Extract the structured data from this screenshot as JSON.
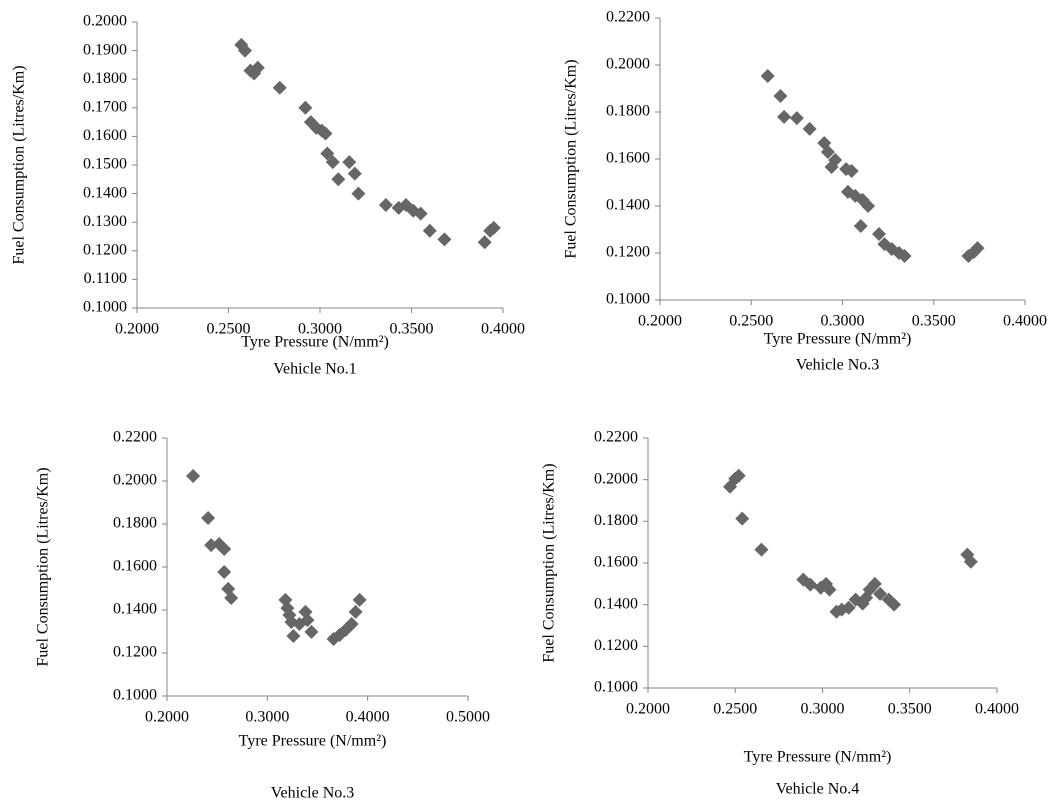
{
  "chart_data": [
    {
      "type": "scatter",
      "title": "Vehicle No.1",
      "xlabel": "Tyre Pressure (N/mm²)",
      "ylabel": "Fuel Consumption (Litres/Km)",
      "color": "#666666",
      "marker": "diamond",
      "x": [
        0.257,
        0.259,
        0.262,
        0.266,
        0.264,
        0.278,
        0.292,
        0.295,
        0.298,
        0.301,
        0.303,
        0.304,
        0.307,
        0.31,
        0.316,
        0.319,
        0.321,
        0.336,
        0.343,
        0.347,
        0.351,
        0.355,
        0.36,
        0.368,
        0.39,
        0.393,
        0.395
      ],
      "values": [
        0.192,
        0.19,
        0.183,
        0.184,
        0.182,
        0.177,
        0.17,
        0.165,
        0.163,
        0.162,
        0.161,
        0.154,
        0.151,
        0.145,
        0.151,
        0.147,
        0.14,
        0.136,
        0.135,
        0.136,
        0.134,
        0.133,
        0.127,
        0.124,
        0.123,
        0.127,
        0.128
      ],
      "xlim": [
        0.2,
        0.4
      ],
      "ylim": [
        0.1,
        0.2
      ],
      "xticks": [
        {
          "value": 0.2,
          "label": "0.2000"
        },
        {
          "value": 0.25,
          "label": "0.2500"
        },
        {
          "value": 0.3,
          "label": "0.3000"
        },
        {
          "value": 0.35,
          "label": "0.3500"
        },
        {
          "value": 0.4,
          "label": "0.4000"
        }
      ],
      "yticks": [
        {
          "value": 0.1,
          "label": "0.1000"
        },
        {
          "value": 0.11,
          "label": "0.1100"
        },
        {
          "value": 0.12,
          "label": "0.1200"
        },
        {
          "value": 0.13,
          "label": "0.1300"
        },
        {
          "value": 0.14,
          "label": "0.1400"
        },
        {
          "value": 0.15,
          "label": "0.1500"
        },
        {
          "value": 0.16,
          "label": "0.1600"
        },
        {
          "value": 0.17,
          "label": "0.1700"
        },
        {
          "value": 0.18,
          "label": "0.1800"
        },
        {
          "value": 0.19,
          "label": "0.1900"
        },
        {
          "value": 0.2,
          "label": "0.2000"
        }
      ]
    },
    {
      "type": "scatter",
      "title": "Vehicle No.3",
      "xlabel": "Tyre Pressure (N/mm²)",
      "ylabel": "Fuel Consumption (Litres/Km)",
      "color": "#666666",
      "marker": "diamond",
      "x": [
        0.259,
        0.266,
        0.268,
        0.275,
        0.282,
        0.29,
        0.292,
        0.294,
        0.296,
        0.302,
        0.305,
        0.303,
        0.307,
        0.311,
        0.314,
        0.31,
        0.32,
        0.323,
        0.327,
        0.331,
        0.334,
        0.369,
        0.372,
        0.374
      ],
      "values": [
        0.1953,
        0.1868,
        0.1779,
        0.1774,
        0.1728,
        0.1668,
        0.163,
        0.1566,
        0.1596,
        0.1557,
        0.1549,
        0.146,
        0.1443,
        0.1426,
        0.14,
        0.1315,
        0.1281,
        0.1238,
        0.1217,
        0.12,
        0.1187,
        0.1187,
        0.1204,
        0.1221
      ],
      "xlim": [
        0.2,
        0.4
      ],
      "ylim": [
        0.1,
        0.22
      ],
      "xticks": [
        {
          "value": 0.2,
          "label": "0.2000"
        },
        {
          "value": 0.25,
          "label": "0.2500"
        },
        {
          "value": 0.3,
          "label": "0.3000"
        },
        {
          "value": 0.35,
          "label": "0.3500"
        },
        {
          "value": 0.4,
          "label": "0.4000"
        }
      ],
      "yticks": [
        {
          "value": 0.1,
          "label": "0.1000"
        },
        {
          "value": 0.12,
          "label": "0.1200"
        },
        {
          "value": 0.14,
          "label": "0.1400"
        },
        {
          "value": 0.16,
          "label": "0.1600"
        },
        {
          "value": 0.18,
          "label": "0.1800"
        },
        {
          "value": 0.2,
          "label": "0.2000"
        },
        {
          "value": 0.22,
          "label": "0.2200"
        }
      ]
    },
    {
      "type": "scatter",
      "title": "Vehicle No.3",
      "xlabel": "Tyre Pressure (N/mm²)",
      "ylabel": "Fuel Consumption (Litres/Km)",
      "color": "#666666",
      "marker": "diamond",
      "x": [
        0.226,
        0.241,
        0.244,
        0.252,
        0.257,
        0.257,
        0.261,
        0.264,
        0.318,
        0.32,
        0.322,
        0.324,
        0.326,
        0.332,
        0.338,
        0.34,
        0.344,
        0.366,
        0.372,
        0.378,
        0.384,
        0.388,
        0.392
      ],
      "values": [
        0.2023,
        0.1828,
        0.1702,
        0.1707,
        0.1684,
        0.1577,
        0.1498,
        0.1456,
        0.1447,
        0.1409,
        0.1377,
        0.1344,
        0.1279,
        0.1335,
        0.1391,
        0.1353,
        0.1298,
        0.1265,
        0.1284,
        0.1307,
        0.1335,
        0.1391,
        0.1447
      ],
      "xlim": [
        0.2,
        0.5
      ],
      "ylim": [
        0.1,
        0.22
      ],
      "xticks": [
        {
          "value": 0.2,
          "label": "0.2000"
        },
        {
          "value": 0.3,
          "label": "0.3000"
        },
        {
          "value": 0.4,
          "label": "0.4000"
        },
        {
          "value": 0.5,
          "label": "0.5000"
        }
      ],
      "yticks": [
        {
          "value": 0.1,
          "label": "0.1000"
        },
        {
          "value": 0.12,
          "label": "0.1200"
        },
        {
          "value": 0.14,
          "label": "0.1400"
        },
        {
          "value": 0.16,
          "label": "0.1600"
        },
        {
          "value": 0.18,
          "label": "0.1800"
        },
        {
          "value": 0.2,
          "label": "0.2000"
        },
        {
          "value": 0.22,
          "label": "0.2200"
        }
      ]
    },
    {
      "type": "scatter",
      "title": "Vehicle No.4",
      "xlabel": "Tyre Pressure (N/mm²)",
      "ylabel": "Fuel Consumption (Litres/Km)",
      "color": "#666666",
      "marker": "diamond",
      "x": [
        0.247,
        0.25,
        0.252,
        0.254,
        0.265,
        0.289,
        0.293,
        0.299,
        0.302,
        0.304,
        0.308,
        0.311,
        0.315,
        0.319,
        0.323,
        0.325,
        0.327,
        0.33,
        0.333,
        0.338,
        0.341,
        0.383,
        0.385
      ],
      "values": [
        0.1966,
        0.2005,
        0.2019,
        0.1813,
        0.1664,
        0.152,
        0.1496,
        0.1481,
        0.15,
        0.1472,
        0.1366,
        0.1376,
        0.1385,
        0.1424,
        0.1405,
        0.1433,
        0.1472,
        0.15,
        0.1452,
        0.1424,
        0.14,
        0.164,
        0.1606
      ],
      "xlim": [
        0.2,
        0.4
      ],
      "ylim": [
        0.1,
        0.22
      ],
      "xticks": [
        {
          "value": 0.2,
          "label": "0.2000"
        },
        {
          "value": 0.25,
          "label": "0.2500"
        },
        {
          "value": 0.3,
          "label": "0.3000"
        },
        {
          "value": 0.35,
          "label": "0.3500"
        },
        {
          "value": 0.4,
          "label": "0.4000"
        }
      ],
      "yticks": [
        {
          "value": 0.1,
          "label": "0.1000"
        },
        {
          "value": 0.12,
          "label": "0.1200"
        },
        {
          "value": 0.14,
          "label": "0.1400"
        },
        {
          "value": 0.16,
          "label": "0.1600"
        },
        {
          "value": 0.18,
          "label": "0.1800"
        },
        {
          "value": 0.2,
          "label": "0.2000"
        },
        {
          "value": 0.22,
          "label": "0.2200"
        }
      ]
    }
  ]
}
